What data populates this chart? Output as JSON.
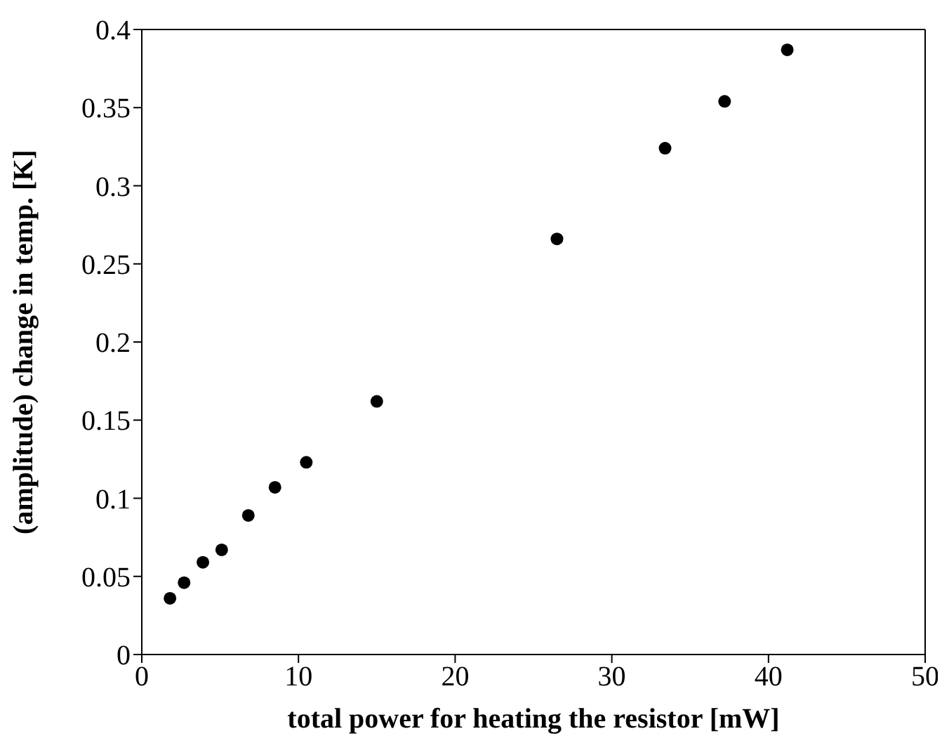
{
  "chart_data": {
    "type": "scatter",
    "xlabel": "total power for heating the resistor [mW]",
    "ylabel": "(amplitude) change in temp. [K]",
    "x": [
      1.8,
      2.7,
      3.9,
      5.1,
      6.8,
      8.5,
      10.5,
      15.0,
      26.5,
      33.4,
      37.2,
      41.2
    ],
    "series": [
      {
        "color": "#000000",
        "values": [
          0.036,
          0.046,
          0.059,
          0.067,
          0.089,
          0.107,
          0.123,
          0.162,
          0.266,
          0.324,
          0.354,
          0.387
        ]
      }
    ],
    "xlim": [
      0,
      50
    ],
    "xticks": [
      0,
      10,
      20,
      30,
      40,
      50
    ],
    "ylim": [
      0,
      0.4
    ],
    "yticks": [
      0,
      0.05,
      0.1,
      0.15,
      0.2,
      0.25,
      0.3,
      0.35,
      0.4
    ],
    "legend": false,
    "marker": "circle"
  }
}
